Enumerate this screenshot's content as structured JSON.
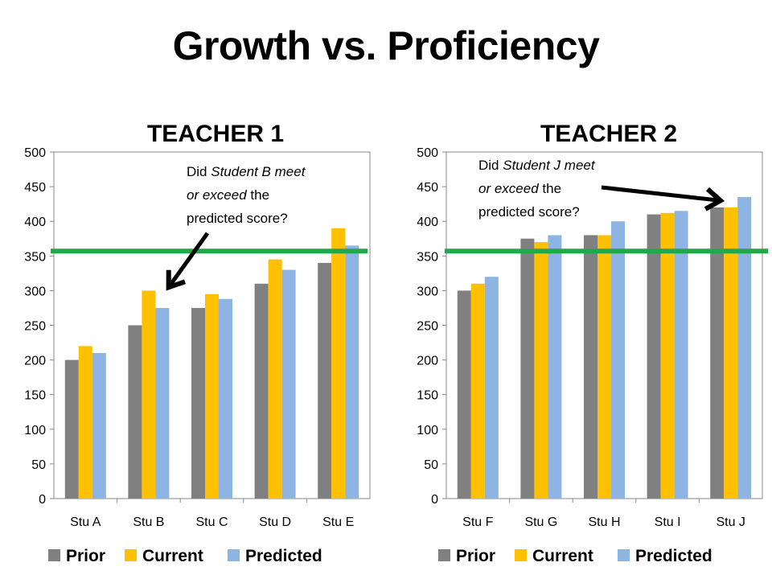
{
  "slide": {
    "title": "Growth vs. Proficiency"
  },
  "colors": {
    "prior": "#808080",
    "current": "#FFC000",
    "predicted": "#8EB4E3",
    "threshold": "#22A84A",
    "arrow": "#000000"
  },
  "chart_data": [
    {
      "type": "bar",
      "title": "TEACHER 1",
      "categories": [
        "Stu A",
        "Stu B",
        "Stu C",
        "Stu D",
        "Stu E"
      ],
      "series": [
        {
          "name": "Prior",
          "values": [
            200,
            250,
            275,
            310,
            340
          ]
        },
        {
          "name": "Current",
          "values": [
            220,
            300,
            295,
            345,
            390
          ]
        },
        {
          "name": "Predicted",
          "values": [
            210,
            275,
            288,
            330,
            365
          ]
        }
      ],
      "ylim": [
        0,
        500
      ],
      "yticks": [
        0,
        50,
        100,
        150,
        200,
        250,
        300,
        350,
        400,
        450,
        500
      ],
      "threshold": 357,
      "legend": "bottom",
      "annotation": {
        "parts": [
          {
            "text": "Did ",
            "italic": false
          },
          {
            "text": "Student B meet",
            "italic": true
          },
          {
            "text": "or exceed",
            "italic": true
          },
          {
            "text": " the",
            "italic": false
          },
          {
            "text": "predicted score?",
            "italic": false
          }
        ]
      }
    },
    {
      "type": "bar",
      "title": "TEACHER 2",
      "categories": [
        "Stu F",
        "Stu G",
        "Stu H",
        "Stu I",
        "Stu J"
      ],
      "series": [
        {
          "name": "Prior",
          "values": [
            300,
            375,
            380,
            410,
            420
          ]
        },
        {
          "name": "Current",
          "values": [
            310,
            370,
            380,
            412,
            420
          ]
        },
        {
          "name": "Predicted",
          "values": [
            320,
            380,
            400,
            415,
            435
          ]
        }
      ],
      "ylim": [
        0,
        500
      ],
      "yticks": [
        0,
        50,
        100,
        150,
        200,
        250,
        300,
        350,
        400,
        450,
        500
      ],
      "threshold": 357,
      "legend": "bottom",
      "annotation": {
        "parts": [
          {
            "text": "Did ",
            "italic": false
          },
          {
            "text": "Student J meet",
            "italic": true
          },
          {
            "text": "or exceed",
            "italic": true
          },
          {
            "text": " the",
            "italic": false
          },
          {
            "text": "predicted score?",
            "italic": false
          }
        ]
      }
    }
  ]
}
